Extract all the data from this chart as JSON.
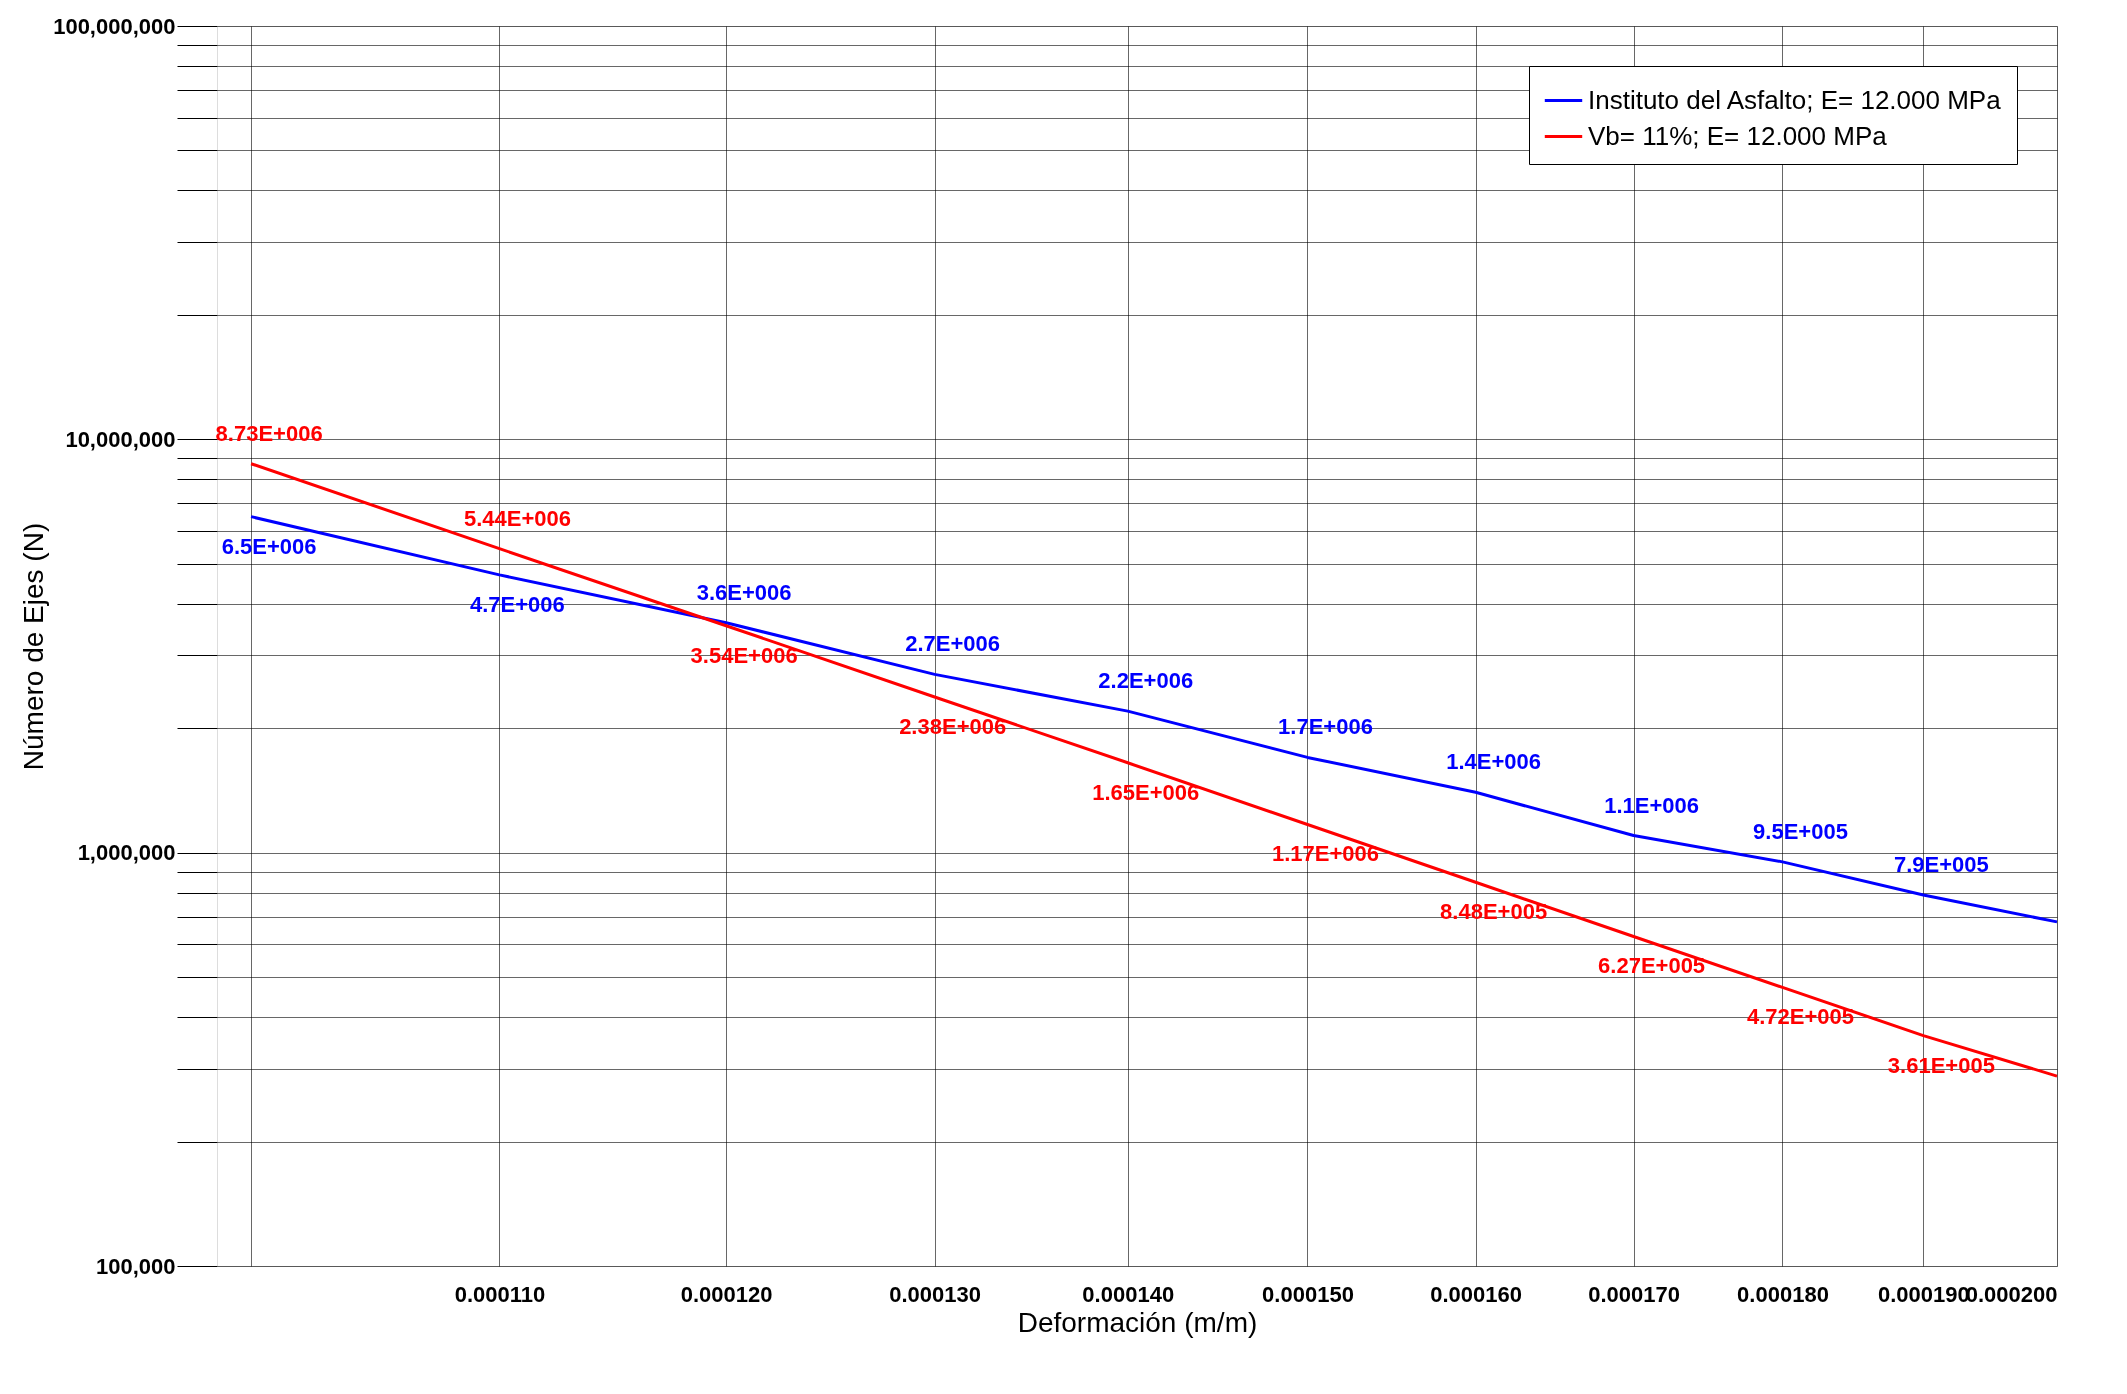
{
  "chart_data": {
    "type": "line",
    "xlabel": "Deformación (m/m)",
    "ylabel": "Número de Ejes (N)",
    "x": [
      0.0001,
      0.00011,
      0.00012,
      0.00013,
      0.00014,
      0.00015,
      0.00016,
      0.00017,
      0.00018,
      0.00019,
      0.0002
    ],
    "series": [
      {
        "name": "Instituto del Asfalto; E= 12.000 MPa",
        "color": "#0000ff",
        "values": [
          6500000,
          4700000,
          3600000,
          2700000,
          2200000,
          1700000,
          1400000,
          1100000,
          950000,
          790000,
          680000
        ],
        "value_labels": [
          "6.5E+006",
          "4.7E+006",
          "3.6E+006",
          "2.7E+006",
          "2.2E+006",
          "1.7E+006",
          "1.4E+006",
          "1.1E+006",
          "9.5E+005",
          "7.9E+005",
          null
        ]
      },
      {
        "name": "Vb= 11%; E= 12.000 MPa",
        "color": "#ff0000",
        "values": [
          8730000,
          5440000,
          3540000,
          2380000,
          1650000,
          1170000,
          848000,
          627000,
          472000,
          361000,
          288000
        ],
        "value_labels": [
          "8.73E+006",
          "5.44E+006",
          "3.54E+006",
          "2.38E+006",
          "1.65E+006",
          "1.17E+006",
          "8.48E+005",
          "6.27E+005",
          "4.72E+005",
          "3.61E+005",
          null
        ]
      }
    ],
    "log": "xy",
    "xlim": [
      9.87e-05,
      0.0002
    ],
    "xticks": [
      {
        "value": 0.0001,
        "label": null
      },
      {
        "value": 0.00011,
        "label": "0.000110"
      },
      {
        "value": 0.00012,
        "label": "0.000120"
      },
      {
        "value": 0.00013,
        "label": "0.000130"
      },
      {
        "value": 0.00014,
        "label": "0.000140"
      },
      {
        "value": 0.00015,
        "label": "0.000150"
      },
      {
        "value": 0.00016,
        "label": "0.000160"
      },
      {
        "value": 0.00017,
        "label": "0.000170"
      },
      {
        "value": 0.00018,
        "label": "0.000180"
      },
      {
        "value": 0.00019,
        "label": "0.000190"
      },
      {
        "value": 0.0002,
        "label": "0.000200"
      }
    ],
    "ylim": [
      100000,
      100000000
    ],
    "yticks": [
      {
        "value": 100000,
        "label": "100,000"
      },
      {
        "value": 200000,
        "label": null
      },
      {
        "value": 300000,
        "label": null
      },
      {
        "value": 400000,
        "label": null
      },
      {
        "value": 500000,
        "label": null
      },
      {
        "value": 600000,
        "label": null
      },
      {
        "value": 700000,
        "label": null
      },
      {
        "value": 800000,
        "label": null
      },
      {
        "value": 900000,
        "label": null
      },
      {
        "value": 1000000,
        "label": "1,000,000"
      },
      {
        "value": 2000000,
        "label": null
      },
      {
        "value": 3000000,
        "label": null
      },
      {
        "value": 4000000,
        "label": null
      },
      {
        "value": 5000000,
        "label": null
      },
      {
        "value": 6000000,
        "label": null
      },
      {
        "value": 7000000,
        "label": null
      },
      {
        "value": 8000000,
        "label": null
      },
      {
        "value": 9000000,
        "label": null
      },
      {
        "value": 10000000,
        "label": "10,000,000"
      },
      {
        "value": 20000000,
        "label": null
      },
      {
        "value": 30000000,
        "label": null
      },
      {
        "value": 40000000,
        "label": null
      },
      {
        "value": 50000000,
        "label": null
      },
      {
        "value": 60000000,
        "label": null
      },
      {
        "value": 70000000,
        "label": null
      },
      {
        "value": 80000000,
        "label": null
      },
      {
        "value": 90000000,
        "label": null
      },
      {
        "value": 100000000,
        "label": "100,000,000"
      }
    ],
    "grid": true,
    "legend": "top right",
    "marker": "none",
    "line_style": "solid"
  }
}
